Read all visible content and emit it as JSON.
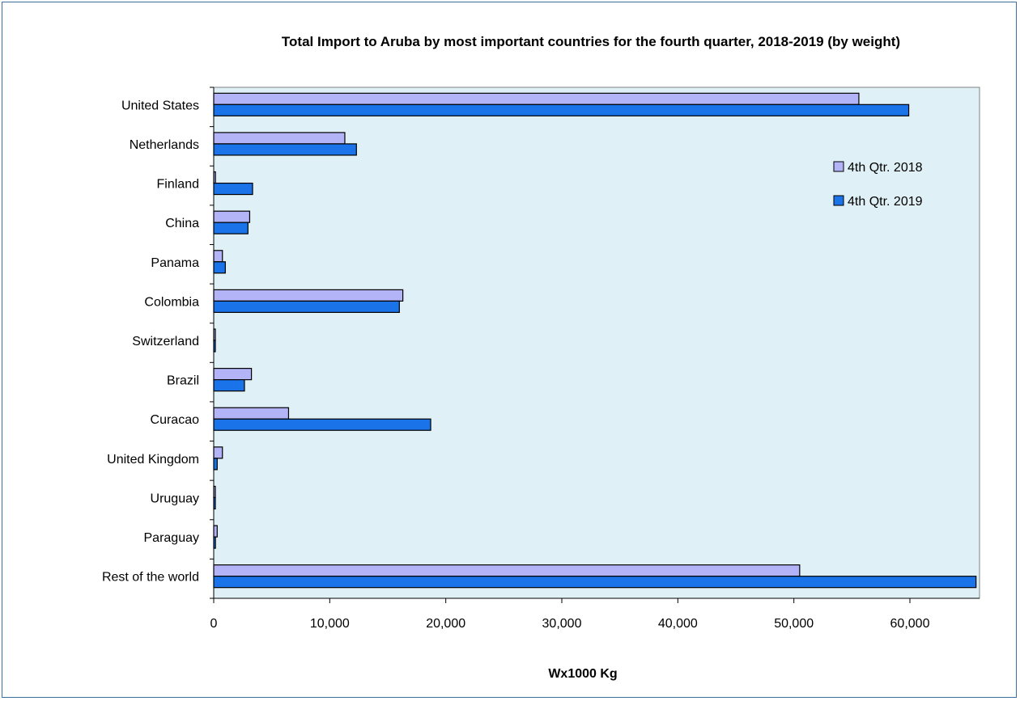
{
  "chart_data": {
    "type": "bar",
    "orientation": "horizontal",
    "title": "Total Import to Aruba  by most important countries  for the fourth  quarter, 2018-2019 (by weight)",
    "xlabel": "Wx1000 Kg",
    "ylabel": "",
    "xlim": [
      0,
      66000
    ],
    "xticks": [
      0,
      10000,
      20000,
      30000,
      40000,
      50000,
      60000
    ],
    "xtick_labels": [
      "0",
      "10,000",
      "20,000",
      "30,000",
      "40,000",
      "50,000",
      "60,000"
    ],
    "categories": [
      "United States",
      "Netherlands",
      "Finland",
      "China",
      "Panama",
      "Colombia",
      "Switzerland",
      "Brazil",
      "Curacao",
      "United Kingdom",
      "Uruguay",
      "Paraguay",
      "Rest of the world"
    ],
    "series": [
      {
        "name": "4th Qtr. 2018",
        "color": "#b3b3f7",
        "values": [
          55600,
          11300,
          150,
          3100,
          750,
          16300,
          100,
          3250,
          6450,
          750,
          100,
          300,
          50500
        ]
      },
      {
        "name": "4th Qtr. 2019",
        "color": "#1a73e8",
        "values": [
          59900,
          12300,
          3350,
          2950,
          1000,
          16000,
          100,
          2650,
          18700,
          300,
          100,
          150,
          65700
        ]
      }
    ],
    "legend_position": "top-right",
    "plot_background": "#dff0f6",
    "grid": false
  }
}
